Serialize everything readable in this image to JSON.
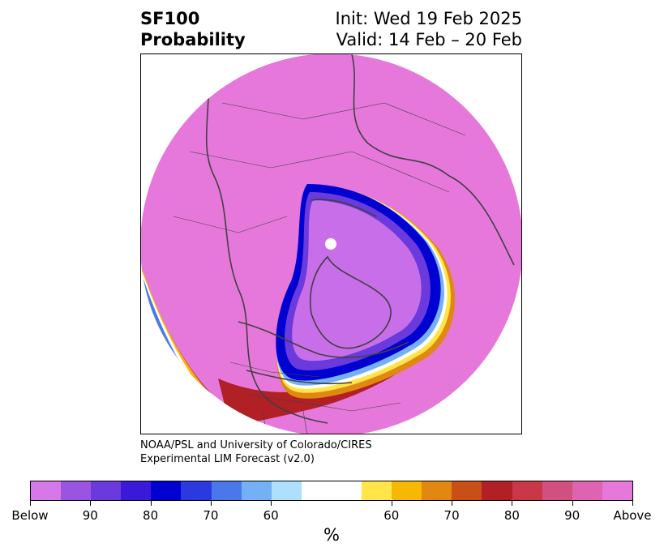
{
  "header": {
    "title_line1": "SF100",
    "title_line2": "Probability",
    "init_text": "Init: Wed 19 Feb 2025",
    "valid_text": "Valid: 14 Feb – 20 Feb"
  },
  "credit": {
    "line1": "NOAA/PSL and University of Colorado/CIRES",
    "line2": "Experimental LIM Forecast (v2.0)"
  },
  "colors": {
    "below_fill": "#c86ee8",
    "above_fill": "#e678dc",
    "white": "#ffffff",
    "coast": "#404040"
  },
  "colorbar": {
    "unit": "%",
    "segments": [
      "#d478ea",
      "#9a55e0",
      "#6a3adc",
      "#3a1ad8",
      "#0000d0",
      "#2a3ae0",
      "#4a78e8",
      "#74b0f4",
      "#ace0fc",
      "#ffffff",
      "#ffe44a",
      "#f6b800",
      "#e08810",
      "#c85018",
      "#b02024",
      "#c83848",
      "#d05080",
      "#dc64b0",
      "#e678dc"
    ],
    "ticks": [
      {
        "label": "Below",
        "frac": 0.0
      },
      {
        "label": "90",
        "frac": 0.1
      },
      {
        "label": "80",
        "frac": 0.2
      },
      {
        "label": "70",
        "frac": 0.3
      },
      {
        "label": "60",
        "frac": 0.4
      },
      {
        "label": "60",
        "frac": 0.6
      },
      {
        "label": "70",
        "frac": 0.7
      },
      {
        "label": "80",
        "frac": 0.8
      },
      {
        "label": "90",
        "frac": 0.9
      },
      {
        "label": "Above",
        "frac": 1.0
      }
    ]
  }
}
